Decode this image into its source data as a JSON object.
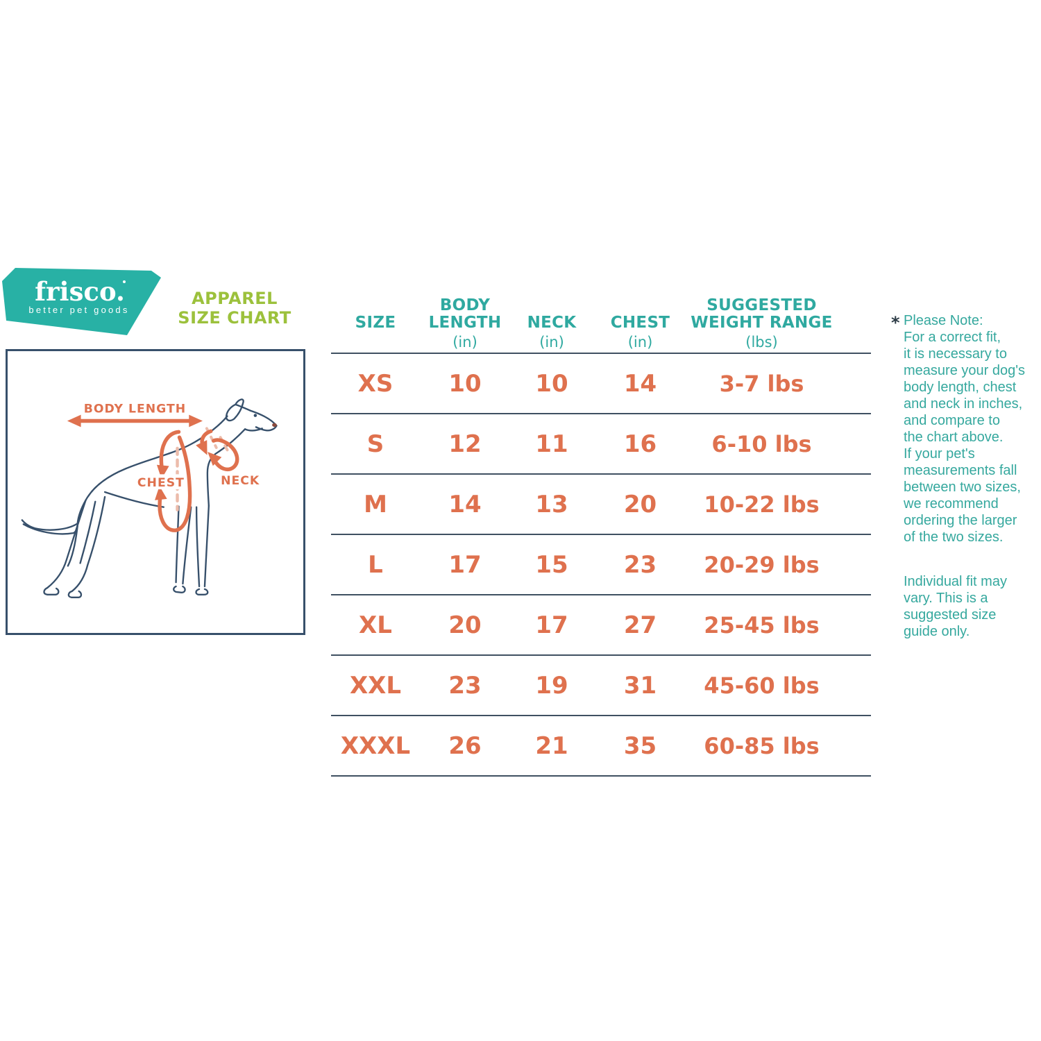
{
  "logo": {
    "brand": "frisco.",
    "tagline": "better pet goods",
    "bg_color": "#28b1a5",
    "text_color": "#ffffff"
  },
  "title": {
    "text": "APPAREL\nSIZE CHART",
    "color": "#9cc13c"
  },
  "diagram": {
    "labels": {
      "body_length": "BODY LENGTH",
      "chest": "CHEST",
      "neck": "NECK"
    },
    "line_color": "#37506b",
    "annotation_color": "#df714e"
  },
  "table": {
    "headers": [
      {
        "label": "SIZE",
        "unit": ""
      },
      {
        "label": "BODY\nLENGTH",
        "unit": "(in)"
      },
      {
        "label": "NECK",
        "unit": "(in)"
      },
      {
        "label": "CHEST",
        "unit": "(in)"
      },
      {
        "label": "SUGGESTED\nWEIGHT RANGE",
        "unit": "(lbs)"
      }
    ],
    "rows": [
      [
        "XS",
        "10",
        "10",
        "14",
        "3-7 lbs"
      ],
      [
        "S",
        "12",
        "11",
        "16",
        "6-10 lbs"
      ],
      [
        "M",
        "14",
        "13",
        "20",
        "10-22 lbs"
      ],
      [
        "L",
        "17",
        "15",
        "23",
        "20-29 lbs"
      ],
      [
        "XL",
        "20",
        "17",
        "27",
        "25-45 lbs"
      ],
      [
        "XXL",
        "23",
        "19",
        "31",
        "45-60 lbs"
      ],
      [
        "XXXL",
        "26",
        "21",
        "35",
        "60-85 lbs"
      ]
    ],
    "header_color": "#2fa9a0",
    "value_color": "#df714e",
    "line_color": "#3f5061"
  },
  "note": {
    "asterisk": "*",
    "paragraph1": "Please Note:\nFor a correct fit,\nit is necessary to\nmeasure your dog's\nbody length, chest\nand neck in inches,\nand compare to\nthe chart above.\nIf your pet's\nmeasurements fall\nbetween two sizes,\nwe recommend\nordering the larger\nof the two sizes.",
    "paragraph2": "Individual fit may\nvary. This is a\nsuggested size\nguide only."
  }
}
